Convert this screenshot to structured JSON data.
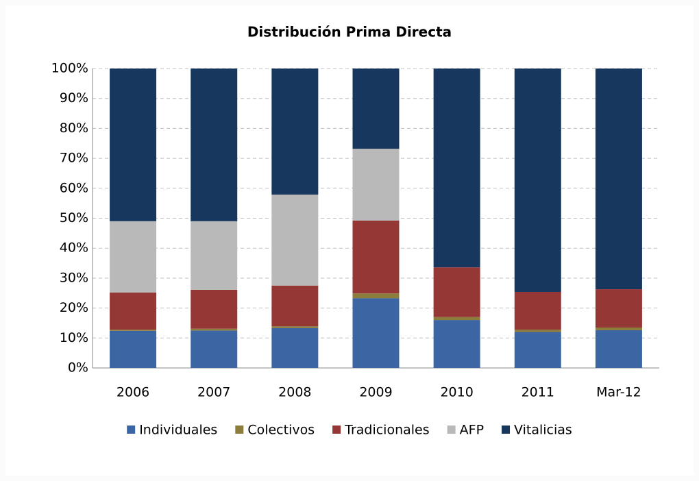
{
  "chart_data": {
    "type": "stacked_bar",
    "title": "Distribución Prima Directa",
    "categories": [
      "2006",
      "2007",
      "2008",
      "2009",
      "2010",
      "2011",
      "Mar-12"
    ],
    "series": [
      {
        "name": "Individuales",
        "color": "#3c66a3",
        "values": [
          12.4,
          12.5,
          13.3,
          23.3,
          16.0,
          12.0,
          12.6
        ]
      },
      {
        "name": "Colectivos",
        "color": "#8c7d3c",
        "values": [
          0.4,
          0.6,
          0.6,
          1.6,
          1.0,
          0.8,
          0.9
        ]
      },
      {
        "name": "Tradicionales",
        "color": "#953735",
        "values": [
          12.4,
          13.0,
          13.6,
          24.3,
          16.6,
          12.6,
          12.8
        ]
      },
      {
        "name": "AFP",
        "color": "#b9b9b9",
        "values": [
          23.8,
          22.9,
          30.4,
          24.0,
          0,
          0,
          0
        ]
      },
      {
        "name": "Vitalicias",
        "color": "#17375e",
        "values": [
          51.0,
          51.0,
          42.1,
          26.8,
          66.4,
          74.6,
          73.7
        ]
      }
    ],
    "ylim": [
      0,
      100
    ],
    "yticks": [
      {
        "value": 0,
        "label": "0%"
      },
      {
        "value": 10,
        "label": "10%"
      },
      {
        "value": 20,
        "label": "20%"
      },
      {
        "value": 30,
        "label": "30%"
      },
      {
        "value": 40,
        "label": "40%"
      },
      {
        "value": 50,
        "label": "50%"
      },
      {
        "value": 60,
        "label": "60%"
      },
      {
        "value": 70,
        "label": "70%"
      },
      {
        "value": 80,
        "label": "80%"
      },
      {
        "value": 90,
        "label": "90%"
      },
      {
        "value": 100,
        "label": "100%"
      }
    ],
    "grid": true,
    "legend": "bottom"
  }
}
